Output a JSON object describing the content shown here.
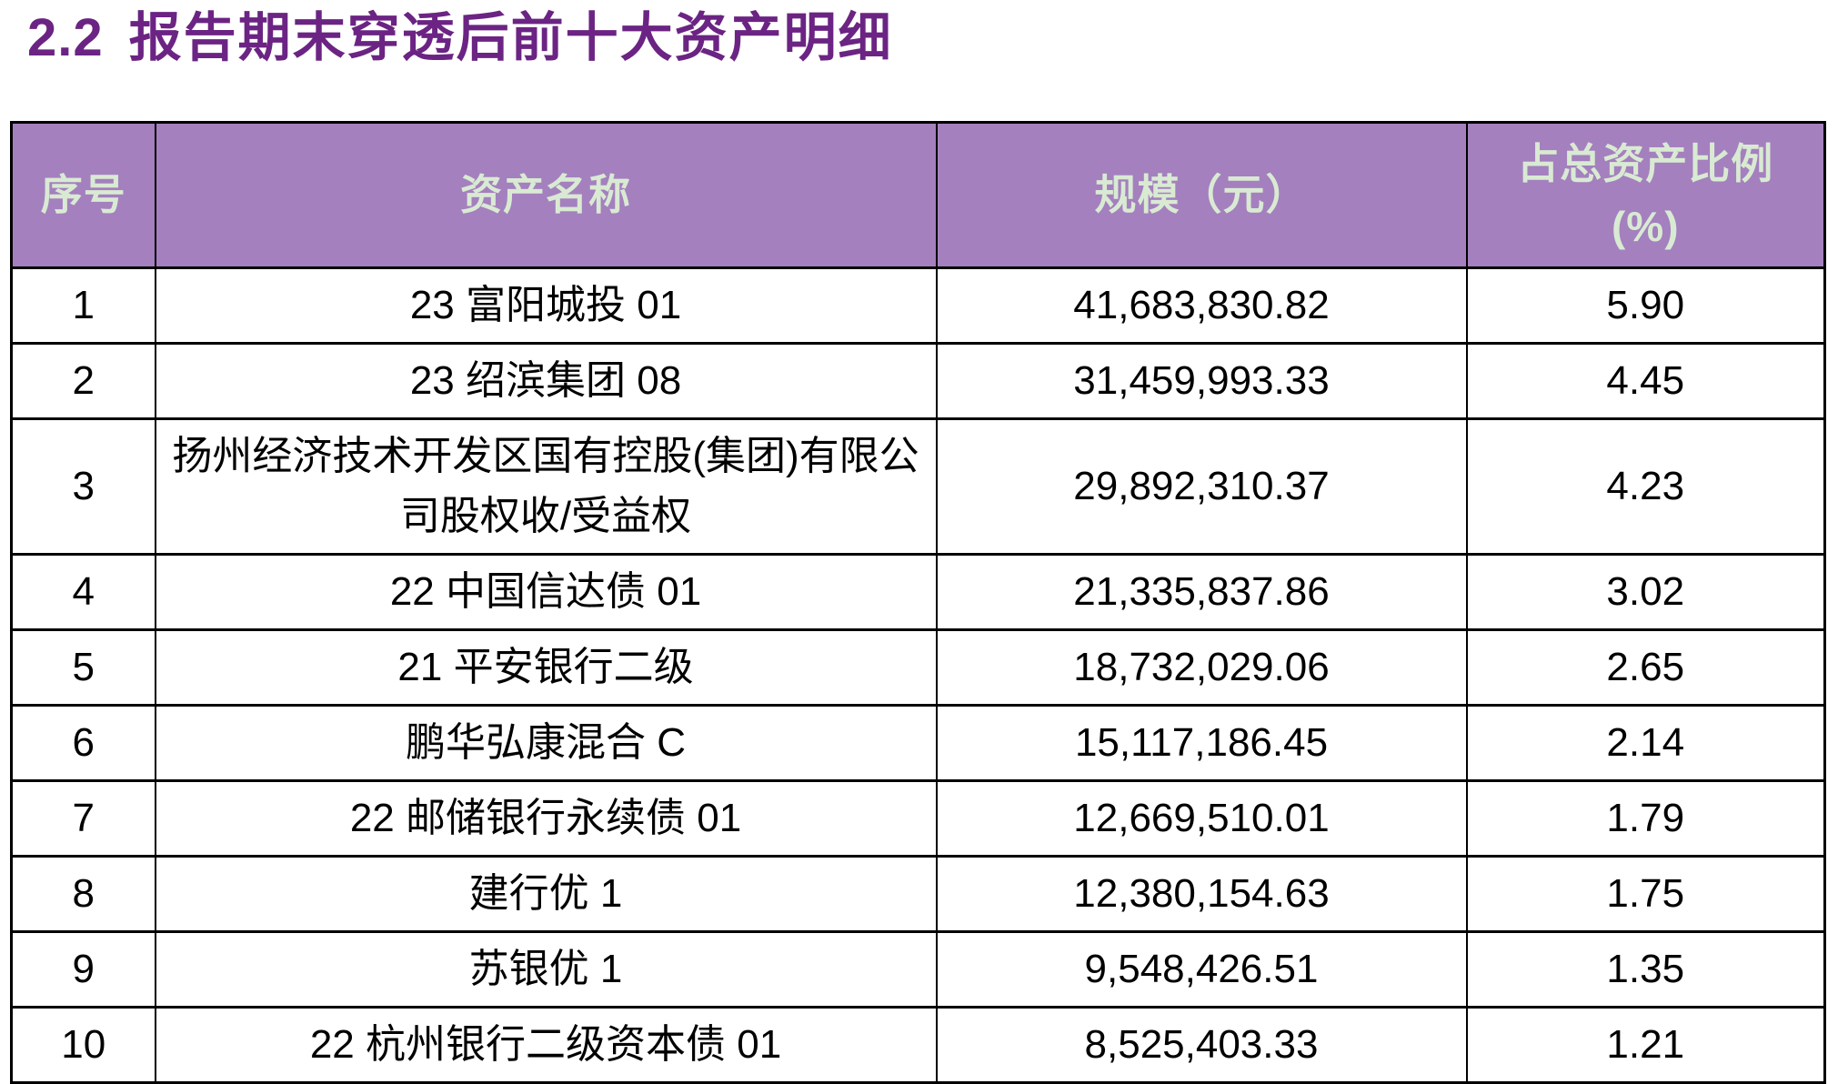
{
  "page": {
    "section_number": "2.2",
    "section_title": "报告期末穿透后前十大资产明细"
  },
  "table": {
    "columns": [
      "序号",
      "资产名称",
      "规模（元）",
      "占总资产比例 (%)"
    ],
    "rows": [
      {
        "no": "1",
        "name": "23 富阳城投 01",
        "scale": "41,683,830.82",
        "pct": "5.90"
      },
      {
        "no": "2",
        "name": "23 绍滨集团 08",
        "scale": "31,459,993.33",
        "pct": "4.45"
      },
      {
        "no": "3",
        "name": "扬州经济技术开发区国有控股(集团)有限公司股权收/受益权",
        "scale": "29,892,310.37",
        "pct": "4.23"
      },
      {
        "no": "4",
        "name": "22 中国信达债 01",
        "scale": "21,335,837.86",
        "pct": "3.02"
      },
      {
        "no": "5",
        "name": "21 平安银行二级",
        "scale": "18,732,029.06",
        "pct": "2.65"
      },
      {
        "no": "6",
        "name": "鹏华弘康混合 C",
        "scale": "15,117,186.45",
        "pct": "2.14"
      },
      {
        "no": "7",
        "name": "22 邮储银行永续债 01",
        "scale": "12,669,510.01",
        "pct": "1.79"
      },
      {
        "no": "8",
        "name": "建行优 1",
        "scale": "12,380,154.63",
        "pct": "1.75"
      },
      {
        "no": "9",
        "name": "苏银优 1",
        "scale": "9,548,426.51",
        "pct": "1.35"
      },
      {
        "no": "10",
        "name": "22 杭州银行二级资本债 01",
        "scale": "8,525,403.33",
        "pct": "1.21"
      }
    ]
  },
  "colors": {
    "title_text": "#6B2483",
    "header_bg": "#A480BE",
    "header_text": "#D9EAD3",
    "body_text": "#000000",
    "border": "#000000",
    "background": "#FFFFFF"
  }
}
